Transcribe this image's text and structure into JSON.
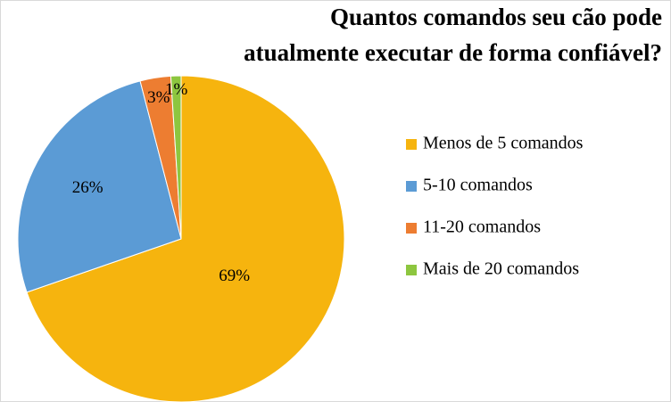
{
  "chart_data": {
    "type": "pie",
    "title": [
      "Quantos comandos seu cão pode",
      "atualmente executar de forma confiável?"
    ],
    "categories": [
      "Menos de 5 comandos",
      "5-10 comandos",
      "11-20 comandos",
      "Mais de 20 comandos"
    ],
    "values": [
      69,
      26,
      3,
      1
    ],
    "value_labels": [
      "69%",
      "26%",
      "3%",
      "1%"
    ],
    "colors": [
      "#f6b40e",
      "#5b9bd5",
      "#ed7d31",
      "#8dc63f"
    ],
    "legend": "right"
  }
}
